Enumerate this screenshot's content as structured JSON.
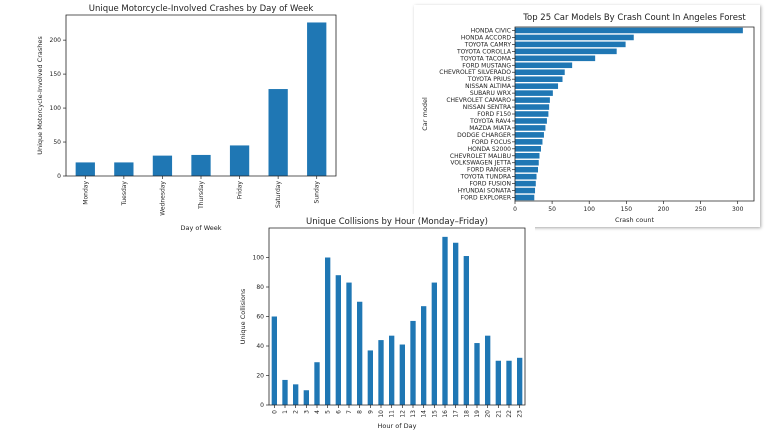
{
  "chart_data": [
    {
      "id": "weekday",
      "type": "bar",
      "title": "Unique Motorcycle-Involved Crashes by Day of Week",
      "xlabel": "Day of Week",
      "ylabel": "Unique Motorcycle-Involved Crashes",
      "categories": [
        "Monday",
        "Tuesday",
        "Wednesday",
        "Thursday",
        "Friday",
        "Saturday",
        "Sunday"
      ],
      "values": [
        20,
        20,
        30,
        31,
        45,
        128,
        226
      ],
      "ylim": [
        0,
        237
      ],
      "yticks": [
        0,
        50,
        100,
        150,
        200
      ],
      "color": "#1f77b4",
      "grid": false
    },
    {
      "id": "carmodels",
      "type": "bar",
      "orientation": "horizontal",
      "title": "Top 25 Car Models By Crash Count In Angeles Forest",
      "xlabel": "Crash count",
      "ylabel": "Car model",
      "categories": [
        "HONDA CIVIC",
        "HONDA ACCORD",
        "TOYOTA CAMRY",
        "TOYOTA COROLLA",
        "TOYOTA TACOMA",
        "FORD MUSTANG",
        "CHEVROLET SILVERADO",
        "TOYOTA PRIUS",
        "NISSAN ALTIMA",
        "SUBARU WRX",
        "CHEVROLET CAMARO",
        "NISSAN SENTRA",
        "FORD F150",
        "TOYOTA RAV4",
        "MAZDA MIATA",
        "DODGE CHARGER",
        "FORD FOCUS",
        "HONDA S2000",
        "CHEVROLET MALIBU",
        "VOLKSWAGEN JETTA",
        "FORD RANGER",
        "TOYOTA TUNDRA",
        "FORD FUSION",
        "HYUNDAI SONATA",
        "FORD EXPLORER"
      ],
      "values": [
        307,
        160,
        149,
        137,
        108,
        77,
        67,
        64,
        58,
        51,
        47,
        46,
        45,
        43,
        41,
        39,
        37,
        35,
        33,
        32,
        31,
        29,
        28,
        27,
        26
      ],
      "xlim": [
        0,
        322
      ],
      "xticks": [
        0,
        50,
        100,
        150,
        200,
        250,
        300
      ],
      "color": "#1f77b4",
      "grid": false
    },
    {
      "id": "hourly",
      "type": "bar",
      "title": "Unique Collisions by Hour (Monday–Friday)",
      "xlabel": "Hour of Day",
      "ylabel": "Unique Collisions",
      "categories": [
        "0",
        "1",
        "2",
        "3",
        "4",
        "5",
        "6",
        "7",
        "8",
        "9",
        "10",
        "11",
        "12",
        "13",
        "14",
        "15",
        "16",
        "17",
        "18",
        "19",
        "20",
        "21",
        "22",
        "23"
      ],
      "values": [
        60,
        17,
        14,
        10,
        29,
        100,
        88,
        83,
        70,
        37,
        44,
        47,
        41,
        57,
        67,
        83,
        114,
        110,
        101,
        42,
        47,
        30,
        30,
        32
      ],
      "ylim": [
        0,
        120
      ],
      "yticks": [
        0,
        20,
        40,
        60,
        80,
        100
      ],
      "color": "#1f77b4",
      "grid": false
    }
  ]
}
